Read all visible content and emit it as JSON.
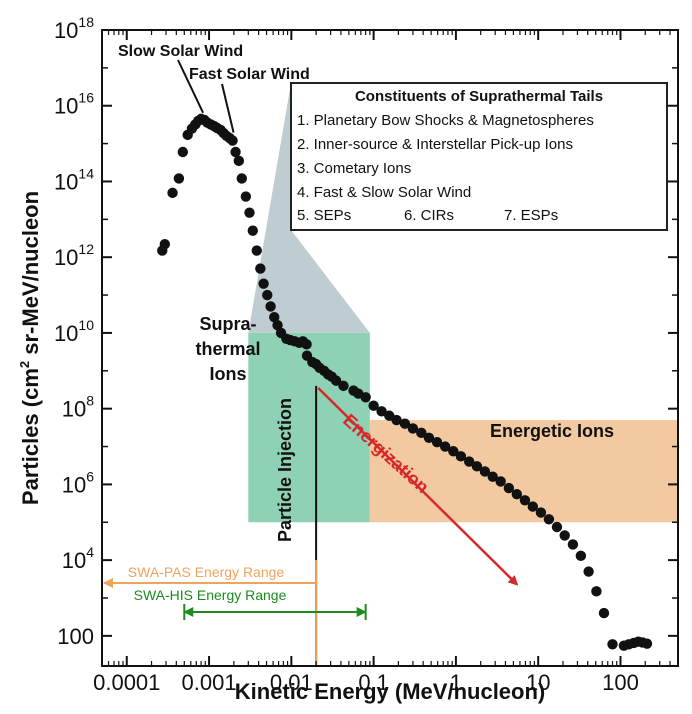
{
  "chart_data": {
    "type": "scatter",
    "title": "",
    "xlabel": "Kinetic Energy (MeV/nucleon)",
    "ylabel_parts": [
      "Particles (cm",
      "2",
      " sr-MeV/nucleon"
    ],
    "xscale": "log",
    "yscale": "log",
    "xlim": [
      5e-05,
      500
    ],
    "ylim": [
      16,
      1e+18
    ],
    "x_ticks": [
      {
        "value": 0.0001,
        "label": "0.0001"
      },
      {
        "value": 0.001,
        "label": "0.001"
      },
      {
        "value": 0.01,
        "label": "0.01"
      },
      {
        "value": 0.1,
        "label": "0.1"
      },
      {
        "value": 1,
        "label": "1"
      },
      {
        "value": 10,
        "label": "10"
      },
      {
        "value": 100,
        "label": "100"
      }
    ],
    "y_ticks": [
      {
        "value": 100,
        "base": "100",
        "exp": ""
      },
      {
        "value": 10000,
        "base": "10",
        "exp": "4"
      },
      {
        "value": 1000000,
        "base": "10",
        "exp": "6"
      },
      {
        "value": 100000000,
        "base": "10",
        "exp": "8"
      },
      {
        "value": 10000000000,
        "base": "10",
        "exp": "10"
      },
      {
        "value": 1000000000000,
        "base": "10",
        "exp": "12"
      },
      {
        "value": 100000000000000,
        "base": "10",
        "exp": "14"
      },
      {
        "value": 10000000000000000,
        "base": "10",
        "exp": "16"
      },
      {
        "value": 1000000000000000000,
        "base": "10",
        "exp": "18"
      }
    ],
    "points": [
      [
        0.00027,
        1500000000000.0
      ],
      [
        0.00029,
        2200000000000.0
      ],
      [
        0.00036,
        50000000000000.0
      ],
      [
        0.00043,
        120000000000000.0
      ],
      [
        0.00048,
        600000000000000.0
      ],
      [
        0.00055,
        1700000000000000.0
      ],
      [
        0.00062,
        2500000000000000.0
      ],
      [
        0.00068,
        3200000000000000.0
      ],
      [
        0.00074,
        4000000000000000.0
      ],
      [
        0.0008,
        4500000000000000.0
      ],
      [
        0.00088,
        4200000000000000.0
      ],
      [
        0.00095,
        3600000000000000.0
      ],
      [
        0.00105,
        3200000000000000.0
      ],
      [
        0.00115,
        2900000000000000.0
      ],
      [
        0.00125,
        2600000000000000.0
      ],
      [
        0.00138,
        2300000000000000.0
      ],
      [
        0.0015,
        1900000000000000.0
      ],
      [
        0.00163,
        1600000000000000.0
      ],
      [
        0.00178,
        1400000000000000.0
      ],
      [
        0.00193,
        1200000000000000.0
      ],
      [
        0.0021,
        600000000000000.0
      ],
      [
        0.0023,
        350000000000000.0
      ],
      [
        0.0025,
        120000000000000.0
      ],
      [
        0.0028,
        40000000000000.0
      ],
      [
        0.0031,
        15000000000000.0
      ],
      [
        0.0034,
        5000000000000.0
      ],
      [
        0.0038,
        1500000000000.0
      ],
      [
        0.0042,
        500000000000.0
      ],
      [
        0.0046,
        200000000000.0
      ],
      [
        0.0051,
        100000000000.0
      ],
      [
        0.0056,
        50000000000.0
      ],
      [
        0.0062,
        26000000000.0
      ],
      [
        0.0068,
        16000000000.0
      ],
      [
        0.0075,
        10000000000.0
      ],
      [
        0.0087,
        7000000000.0
      ],
      [
        0.0097,
        6500000000.0
      ],
      [
        0.011,
        6000000000.0
      ],
      [
        0.0125,
        5500000000.0
      ],
      [
        0.0138,
        6000000000.0
      ],
      [
        0.0153,
        5000000000.0
      ],
      [
        0.0155,
        2500000000.0
      ],
      [
        0.018,
        1700000000.0
      ],
      [
        0.02,
        1500000000.0
      ],
      [
        0.022,
        1200000000.0
      ],
      [
        0.025,
        1000000000.0
      ],
      [
        0.028,
        800000000.0
      ],
      [
        0.031,
        700000000.0
      ],
      [
        0.035,
        550000000.0
      ],
      [
        0.043,
        400000000.0
      ],
      [
        0.057,
        300000000.0
      ],
      [
        0.065,
        250000000.0
      ],
      [
        0.08,
        200000000.0
      ],
      [
        0.1,
        120000000.0
      ],
      [
        0.125,
        85000000.0
      ],
      [
        0.155,
        65000000.0
      ],
      [
        0.19,
        50000000.0
      ],
      [
        0.24,
        40000000.0
      ],
      [
        0.3,
        30000000.0
      ],
      [
        0.38,
        23000000.0
      ],
      [
        0.47,
        17000000.0
      ],
      [
        0.59,
        13000000.0
      ],
      [
        0.74,
        10000000.0
      ],
      [
        0.93,
        7500000.0
      ],
      [
        1.15,
        5500000.0
      ],
      [
        1.45,
        4000000.0
      ],
      [
        1.8,
        3000000.0
      ],
      [
        2.25,
        2200000.0
      ],
      [
        2.8,
        1600000.0
      ],
      [
        3.5,
        1200000.0
      ],
      [
        4.4,
        800000.0
      ],
      [
        5.5,
        550000.0
      ],
      [
        6.9,
        380000.0
      ],
      [
        8.6,
        260000.0
      ],
      [
        10.8,
        180000.0
      ],
      [
        13.5,
        120000.0
      ],
      [
        16.9,
        75000.0
      ],
      [
        21,
        45000.0
      ],
      [
        26.4,
        26000.0
      ],
      [
        33,
        13000.0
      ],
      [
        41,
        5000.0
      ],
      [
        51,
        1500.0
      ],
      [
        63,
        400
      ],
      [
        80,
        60
      ],
      [
        110,
        55
      ],
      [
        126,
        60
      ],
      [
        145,
        65
      ],
      [
        165,
        70
      ],
      [
        185,
        67
      ],
      [
        210,
        62
      ]
    ],
    "regions": {
      "suprathermal": {
        "label": [
          "Supra-",
          "thermal",
          "Ions"
        ],
        "x": [
          0.003,
          0.09
        ],
        "y": [
          100000.0,
          10000000000.0
        ],
        "color": "#8fd1b5"
      },
      "energetic": {
        "label": "Energetic Ions",
        "x": [
          0.09,
          500
        ],
        "y": [
          100000.0,
          50000000.0
        ],
        "color": "#f3c9a1"
      }
    },
    "annotations": {
      "slow_solar_wind": "Slow Solar Wind",
      "fast_solar_wind": "Fast Solar Wind",
      "particle_injection": "Particle Injection",
      "energization": "Energization"
    },
    "injection_line": {
      "x": 0.02,
      "y": [
        16,
        400000000.0
      ]
    },
    "energization_arrow": {
      "x": [
        0.02,
        5.5
      ],
      "y": [
        400000000.0,
        2300.0
      ],
      "color": "#d42a2a"
    },
    "energy_ranges": [
      {
        "name": "SWA-PAS Energy Range",
        "x": [
          5e-05,
          0.02
        ],
        "color": "#f0a35e"
      },
      {
        "name": "SWA-HIS Energy Range",
        "x": [
          0.0005,
          0.08
        ],
        "color": "#1e8a1e"
      }
    ],
    "constituents_box": {
      "title": "Constituents of Suprathermal Tails",
      "items": [
        "1. Planetary Bow Shocks & Magnetospheres",
        "2. Inner-source & Interstellar Pick-up Ions",
        "3. Cometary Ions",
        "4. Fast & Slow Solar Wind"
      ],
      "last_row": [
        "5. SEPs",
        "6. CIRs",
        "7. ESPs"
      ]
    },
    "colors": {
      "marker": "#111111",
      "suprathermal_region": "#8fd1b5",
      "energetic_region": "#f3c9a1",
      "callout": "#b8c6cc",
      "energization": "#d42a2a",
      "pas": "#f0a35e",
      "his": "#1e8a1e"
    }
  }
}
